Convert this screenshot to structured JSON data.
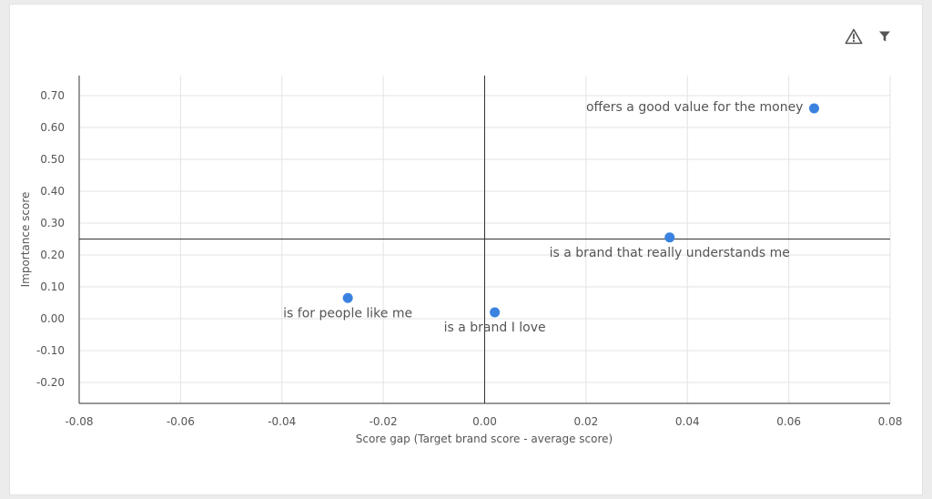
{
  "toolbar": {
    "warning_icon": "warning-triangle-icon",
    "filter_icon": "filter-funnel-icon"
  },
  "colors": {
    "point": "#3b82e0",
    "grid": "#e3e3e3",
    "axis": "#333333",
    "text": "#555555"
  },
  "chart_data": {
    "type": "scatter",
    "xlabel": "Score gap (Target brand score - average score)",
    "ylabel": "Importance score",
    "xlim": [
      -0.08,
      0.08
    ],
    "ylim": [
      -0.24,
      0.72
    ],
    "xticks": [
      -0.08,
      -0.06,
      -0.04,
      -0.02,
      0.0,
      0.02,
      0.04,
      0.06,
      0.08
    ],
    "xtick_labels": [
      "-0.08",
      "-0.06",
      "-0.04",
      "-0.02",
      "0.00",
      "0.02",
      "0.04",
      "0.06",
      "0.08"
    ],
    "yticks": [
      0.7,
      0.6,
      0.5,
      0.4,
      0.3,
      0.2,
      0.1,
      0.0,
      -0.1,
      -0.2
    ],
    "ytick_labels": [
      "0.70",
      "0.60",
      "0.50",
      "0.40",
      "0.30",
      "0.20",
      "0.10",
      "0.00",
      "-0.10",
      "-0.20"
    ],
    "grid": true,
    "reference_lines": {
      "x": 0.0,
      "y": 0.25
    },
    "points": [
      {
        "label": "offers a good value for the money",
        "x": 0.065,
        "y": 0.66,
        "label_position": "left"
      },
      {
        "label": "is a brand that really understands me",
        "x": 0.0365,
        "y": 0.255,
        "label_position": "below"
      },
      {
        "label": "is for people like me",
        "x": -0.027,
        "y": 0.065,
        "label_position": "below"
      },
      {
        "label": "is a brand I love",
        "x": 0.002,
        "y": 0.02,
        "label_position": "below"
      }
    ]
  }
}
